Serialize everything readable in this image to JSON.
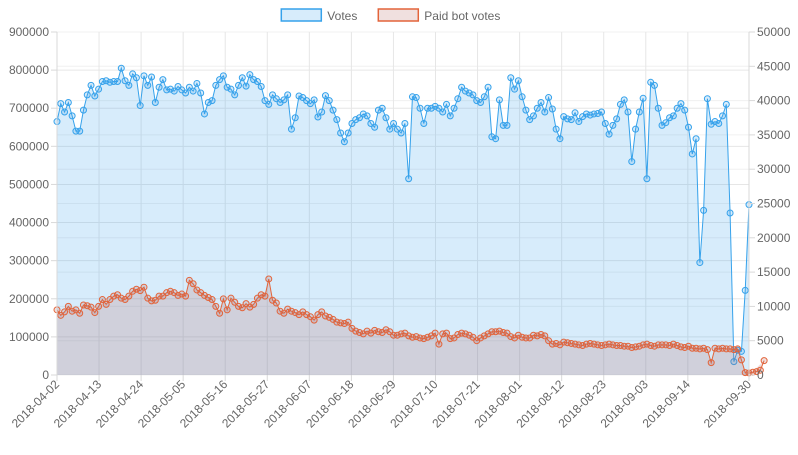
{
  "chart_data": {
    "type": "line",
    "title": "",
    "legend": {
      "placement": "top-center"
    },
    "grid": true,
    "x_tick_labels": [
      "2018-04-02",
      "2018-04-13",
      "2018-04-24",
      "2018-05-05",
      "2018-05-16",
      "2018-05-27",
      "2018-06-07",
      "2018-06-18",
      "2018-06-29",
      "2018-07-10",
      "2018-07-21",
      "2018-08-01",
      "2018-08-12",
      "2018-08-23",
      "2018-09-03",
      "2018-09-14",
      "2018-09-30"
    ],
    "x_range": [
      "2018-04-02",
      "2018-09-30"
    ],
    "y_left": {
      "min": 0,
      "max": 900000,
      "ticks": [
        "0",
        "100000",
        "200000",
        "300000",
        "400000",
        "500000",
        "600000",
        "700000",
        "800000",
        "900000"
      ]
    },
    "y_right": {
      "min": 0,
      "max": 50000,
      "ticks": [
        "0",
        "5000",
        "10000",
        "15000",
        "20000",
        "25000",
        "30000",
        "35000",
        "40000",
        "45000",
        "50000"
      ]
    },
    "series": [
      {
        "name": "Votes",
        "axis": "left",
        "color": "#36a2eb",
        "fill": "rgba(54,162,235,0.2)",
        "values": [
          665000,
          712000,
          690000,
          715000,
          680000,
          640000,
          640000,
          695000,
          735000,
          760000,
          732000,
          750000,
          770000,
          772000,
          768000,
          770000,
          770000,
          805000,
          772000,
          760000,
          790000,
          780000,
          707000,
          785000,
          760000,
          782000,
          715000,
          755000,
          775000,
          748000,
          750000,
          745000,
          757000,
          748000,
          740000,
          755000,
          745000,
          765000,
          740000,
          685000,
          715000,
          720000,
          760000,
          775000,
          785000,
          755000,
          750000,
          735000,
          760000,
          780000,
          758000,
          788000,
          775000,
          770000,
          757000,
          720000,
          710000,
          735000,
          725000,
          715000,
          722000,
          735000,
          645000,
          675000,
          732000,
          728000,
          720000,
          712000,
          722000,
          677000,
          690000,
          733000,
          720000,
          695000,
          670000,
          635000,
          612000,
          635000,
          660000,
          670000,
          675000,
          685000,
          680000,
          660000,
          650000,
          695000,
          700000,
          675000,
          645000,
          660000,
          645000,
          635000,
          660000,
          515000,
          730000,
          728000,
          700000,
          660000,
          700000,
          700000,
          705000,
          700000,
          690000,
          710000,
          680000,
          700000,
          725000,
          755000,
          745000,
          740000,
          735000,
          720000,
          715000,
          730000,
          755000,
          625000,
          620000,
          722000,
          655000,
          655000,
          780000,
          750000,
          772000,
          730000,
          695000,
          670000,
          680000,
          700000,
          715000,
          690000,
          728000,
          698000,
          645000,
          620000,
          678000,
          672000,
          670000,
          688000,
          665000,
          678000,
          685000,
          682000,
          685000,
          686000,
          690000,
          660000,
          632000,
          655000,
          672000,
          710000,
          722000,
          690000,
          560000,
          645000,
          690000,
          726000,
          515000,
          768000,
          760000,
          700000,
          655000,
          662000,
          675000,
          680000,
          700000,
          712000,
          695000,
          650000,
          580000,
          620000,
          295000,
          432000,
          725000,
          658000,
          665000,
          660000,
          680000,
          710000,
          425000,
          35000,
          65000,
          62000,
          222000,
          447000
        ]
      },
      {
        "name": "Paid bot votes",
        "axis": "right",
        "color": "#e3643a",
        "fill": "rgba(179,98,95,0.2)",
        "values": [
          9500,
          8700,
          9200,
          10000,
          9300,
          9500,
          9000,
          10200,
          10100,
          9900,
          9100,
          10000,
          11000,
          10300,
          11000,
          11500,
          11700,
          11200,
          11000,
          11500,
          12200,
          12500,
          12300,
          12800,
          11200,
          10800,
          10900,
          11500,
          11500,
          12000,
          12200,
          12000,
          11600,
          11800,
          11500,
          13800,
          13300,
          12400,
          12000,
          11600,
          11300,
          11000,
          10000,
          9000,
          11100,
          9500,
          11200,
          10600,
          10000,
          9800,
          10400,
          9900,
          10300,
          11200,
          11700,
          11500,
          14000,
          10900,
          10500,
          9300,
          9000,
          9600,
          9300,
          9100,
          8800,
          9200,
          8800,
          8500,
          8000,
          8800,
          9200,
          8600,
          8400,
          8100,
          7700,
          7600,
          7500,
          7700,
          6800,
          6400,
          6200,
          6000,
          6400,
          6100,
          6500,
          6300,
          6200,
          6600,
          6300,
          5800,
          5800,
          6000,
          6100,
          5700,
          5500,
          5600,
          5400,
          5300,
          5500,
          5700,
          6100,
          4500,
          6000,
          6100,
          5300,
          5400,
          5900,
          6100,
          6000,
          5800,
          5500,
          5000,
          5400,
          5700,
          6000,
          6300,
          6300,
          6400,
          6200,
          6100,
          5600,
          5400,
          5800,
          5500,
          5400,
          5400,
          5800,
          5700,
          5900,
          5700,
          5000,
          4500,
          4600,
          4400,
          4800,
          4700,
          4600,
          4500,
          4400,
          4300,
          4500,
          4600,
          4500,
          4400,
          4300,
          4400,
          4500,
          4400,
          4300,
          4300,
          4200,
          4200,
          4000,
          4100,
          4200,
          4400,
          4500,
          4300,
          4200,
          4400,
          4400,
          4400,
          4300,
          4500,
          4300,
          4100,
          4000,
          4200,
          3900,
          3900,
          3800,
          3900,
          3700,
          1800,
          3900,
          3800,
          3900,
          3800,
          3800,
          3700,
          3800,
          2200,
          350,
          300,
          400,
          500,
          700,
          2100
        ]
      }
    ]
  }
}
